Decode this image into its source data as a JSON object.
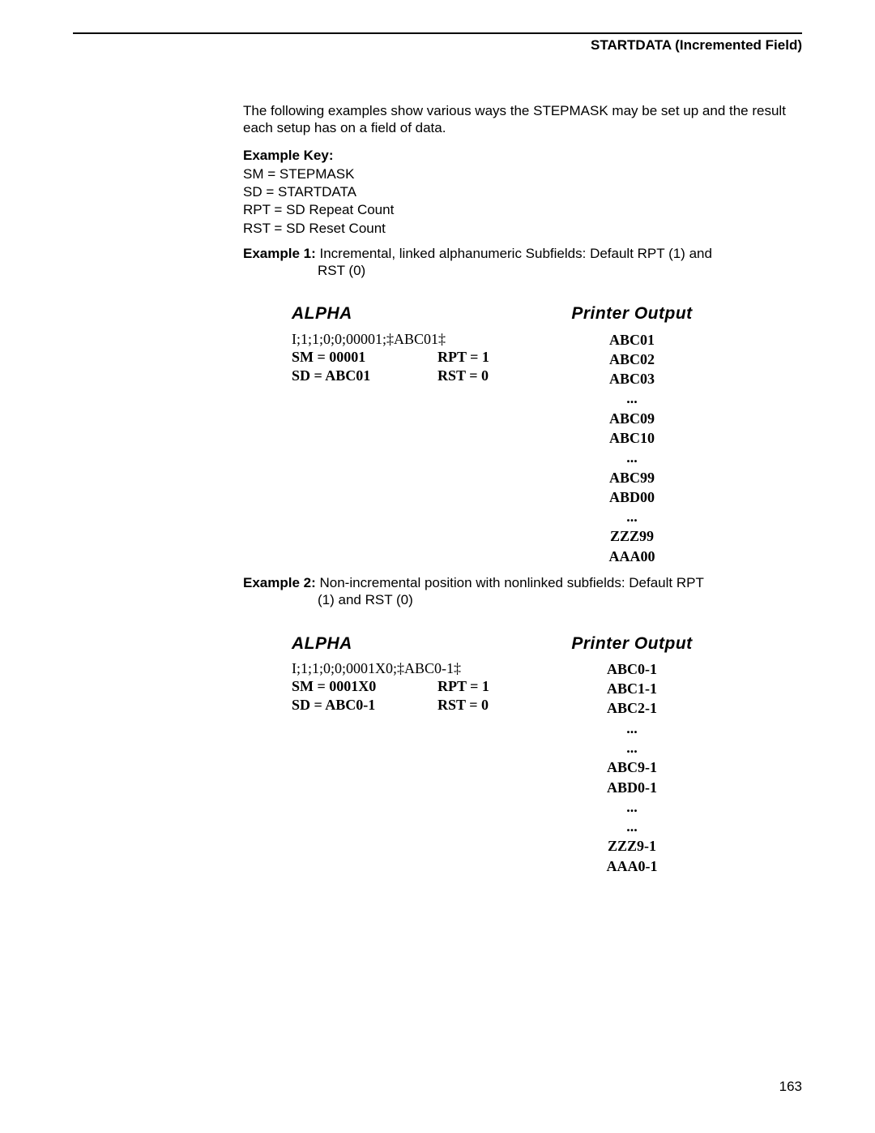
{
  "header": {
    "title": "STARTDATA (Incremented Field)"
  },
  "intro": "The following examples show various ways the STEPMASK may be set up and the result each setup has on a field of data.",
  "key": {
    "title": "Example Key:",
    "lines": [
      "SM = STEPMASK",
      "SD = STARTDATA",
      "RPT = SD Repeat Count",
      "RST = SD Reset Count"
    ]
  },
  "example1": {
    "label": "Example 1:",
    "desc_line1": "Incremental, linked alphanumeric Subfields: Default RPT (1) and",
    "desc_line2": "RST (0)",
    "alpha_heading": "ALPHA",
    "output_heading": "Printer Output",
    "cmd": "I;1;1;0;0;00001;‡ABC01‡",
    "sm": "SM = 00001",
    "sd": "SD = ABC01",
    "rpt": "RPT = 1",
    "rst": "RST = 0",
    "output": [
      "ABC01",
      "ABC02",
      "ABC03",
      "...",
      "ABC09",
      "ABC10",
      "...",
      "ABC99",
      "ABD00",
      "...",
      "ZZZ99",
      "AAA00"
    ]
  },
  "example2": {
    "label": "Example 2:",
    "desc_line1": "Non-incremental position with nonlinked subfields: Default RPT",
    "desc_line2": "(1) and RST (0)",
    "alpha_heading": "ALPHA",
    "output_heading": "Printer Output",
    "cmd": "I;1;1;0;0;0001X0;‡ABC0-1‡",
    "sm": "SM = 0001X0",
    "sd": "SD = ABC0-1",
    "rpt": "RPT = 1",
    "rst": "RST = 0",
    "output": [
      "ABC0-1",
      "ABC1-1",
      "ABC2-1",
      "...",
      "...",
      "ABC9-1",
      "ABD0-1",
      "...",
      "...",
      "ZZZ9-1",
      "AAA0-1"
    ]
  },
  "page_number": "163"
}
